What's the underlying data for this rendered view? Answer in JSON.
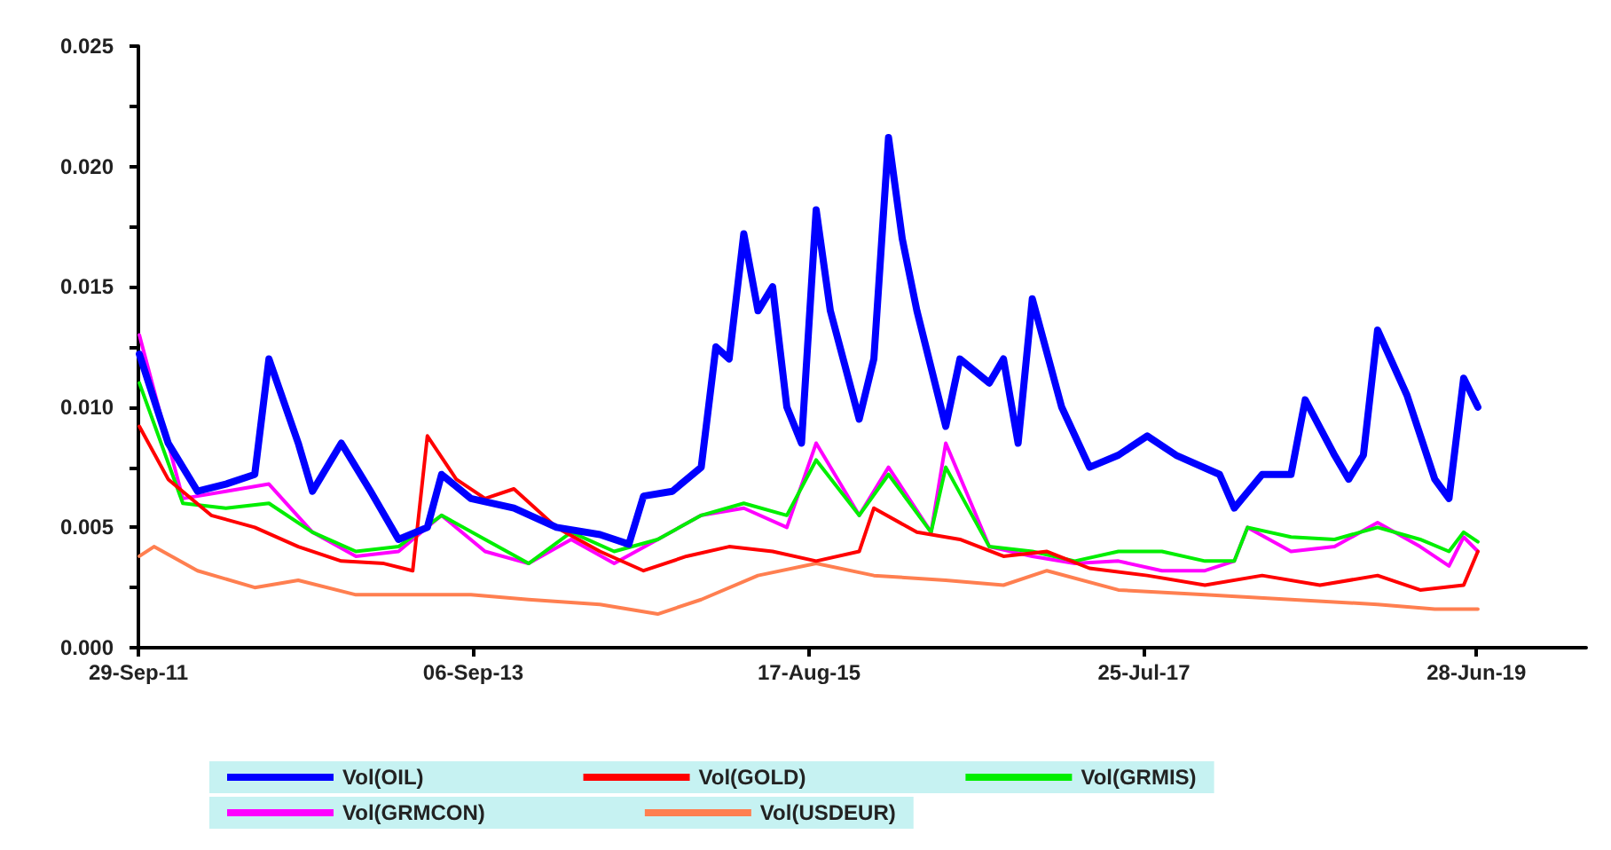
{
  "chart_data": {
    "type": "line",
    "xlim": [
      "2011-09-29",
      "2020-02-15"
    ],
    "xticks": [
      {
        "value": "2011-09-29",
        "label": "29-Sep-11"
      },
      {
        "value": "2013-09-06",
        "label": "06-Sep-13"
      },
      {
        "value": "2015-08-17",
        "label": "17-Aug-15"
      },
      {
        "value": "2017-07-25",
        "label": "25-Jul-17"
      },
      {
        "value": "2019-06-28",
        "label": "28-Jun-19"
      }
    ],
    "ylim": [
      0,
      0.025
    ],
    "yticks": [
      {
        "value": 0,
        "label": "0.000"
      },
      {
        "value": 0.0025,
        "label": null
      },
      {
        "value": 0.005,
        "label": "0.005"
      },
      {
        "value": 0.0075,
        "label": null
      },
      {
        "value": 0.01,
        "label": "0.010"
      },
      {
        "value": 0.0125,
        "label": null
      },
      {
        "value": 0.015,
        "label": "0.015"
      },
      {
        "value": 0.0175,
        "label": null
      },
      {
        "value": 0.02,
        "label": "0.020"
      },
      {
        "value": 0.0225,
        "label": null
      },
      {
        "value": 0.025,
        "label": "0.025"
      }
    ],
    "grid": false,
    "legend": "bottom",
    "marker": "none",
    "series": [
      {
        "name": "Vol(OIL)",
        "color": "#0000ff",
        "x": [
          "2011-10",
          "2011-12",
          "2012-02",
          "2012-04",
          "2012-06",
          "2012-07",
          "2012-09",
          "2012-10",
          "2012-12",
          "2013-02",
          "2013-04",
          "2013-06",
          "2013-07",
          "2013-09",
          "2013-12",
          "2014-03",
          "2014-06",
          "2014-08",
          "2014-09",
          "2014-11",
          "2015-01",
          "2015-02",
          "2015-03",
          "2015-04",
          "2015-05",
          "2015-06",
          "2015-07",
          "2015-08",
          "2015-09",
          "2015-10",
          "2015-12",
          "2016-01",
          "2016-02",
          "2016-03",
          "2016-04",
          "2016-06",
          "2016-07",
          "2016-09",
          "2016-10",
          "2016-11",
          "2016-12",
          "2017-02",
          "2017-04",
          "2017-06",
          "2017-08",
          "2017-10",
          "2018-01",
          "2018-02",
          "2018-04",
          "2018-06",
          "2018-07",
          "2018-09",
          "2018-10",
          "2018-11",
          "2018-12",
          "2019-02",
          "2019-04",
          "2019-05",
          "2019-06",
          "2019-07"
        ],
        "values": [
          0.0122,
          0.0085,
          0.0065,
          0.0068,
          0.0072,
          0.012,
          0.0085,
          0.0065,
          0.0085,
          0.0065,
          0.0045,
          0.005,
          0.0072,
          0.0062,
          0.0058,
          0.005,
          0.0047,
          0.0043,
          0.0063,
          0.0065,
          0.0075,
          0.0125,
          0.012,
          0.0172,
          0.014,
          0.015,
          0.01,
          0.0085,
          0.0182,
          0.014,
          0.0095,
          0.012,
          0.0212,
          0.017,
          0.014,
          0.0092,
          0.012,
          0.011,
          0.012,
          0.0085,
          0.0145,
          0.01,
          0.0075,
          0.008,
          0.0088,
          0.008,
          0.0072,
          0.0058,
          0.0072,
          0.0072,
          0.0103,
          0.008,
          0.007,
          0.008,
          0.0132,
          0.0105,
          0.007,
          0.0062,
          0.0112,
          0.01
        ]
      },
      {
        "name": "Vol(GOLD)",
        "color": "#ff0000",
        "x": [
          "2011-10",
          "2011-12",
          "2012-03",
          "2012-06",
          "2012-09",
          "2012-12",
          "2013-03",
          "2013-05",
          "2013-06",
          "2013-08",
          "2013-10",
          "2013-12",
          "2014-03",
          "2014-06",
          "2014-09",
          "2014-12",
          "2015-03",
          "2015-06",
          "2015-09",
          "2015-12",
          "2016-01",
          "2016-04",
          "2016-07",
          "2016-10",
          "2017-01",
          "2017-04",
          "2017-08",
          "2017-12",
          "2018-04",
          "2018-08",
          "2018-12",
          "2019-03",
          "2019-06",
          "2019-07"
        ],
        "values": [
          0.0092,
          0.007,
          0.0055,
          0.005,
          0.0042,
          0.0036,
          0.0035,
          0.0032,
          0.0088,
          0.007,
          0.0062,
          0.0066,
          0.005,
          0.004,
          0.0032,
          0.0038,
          0.0042,
          0.004,
          0.0036,
          0.004,
          0.0058,
          0.0048,
          0.0045,
          0.0038,
          0.004,
          0.0033,
          0.003,
          0.0026,
          0.003,
          0.0026,
          0.003,
          0.0024,
          0.0026,
          0.004
        ]
      },
      {
        "name": "Vol(GRMIS)",
        "color": "#00ee00",
        "x": [
          "2011-10",
          "2012-01",
          "2012-04",
          "2012-07",
          "2012-10",
          "2013-01",
          "2013-04",
          "2013-07",
          "2013-10",
          "2014-01",
          "2014-04",
          "2014-07",
          "2014-10",
          "2015-01",
          "2015-04",
          "2015-07",
          "2015-09",
          "2015-12",
          "2016-02",
          "2016-05",
          "2016-06",
          "2016-09",
          "2016-12",
          "2017-03",
          "2017-06",
          "2017-09",
          "2017-12",
          "2018-02",
          "2018-03",
          "2018-06",
          "2018-09",
          "2018-12",
          "2019-03",
          "2019-05",
          "2019-06",
          "2019-07"
        ],
        "values": [
          0.011,
          0.006,
          0.0058,
          0.006,
          0.0048,
          0.004,
          0.0042,
          0.0055,
          0.0045,
          0.0035,
          0.0048,
          0.004,
          0.0045,
          0.0055,
          0.006,
          0.0055,
          0.0078,
          0.0055,
          0.0072,
          0.0048,
          0.0075,
          0.0042,
          0.004,
          0.0036,
          0.004,
          0.004,
          0.0036,
          0.0036,
          0.005,
          0.0046,
          0.0045,
          0.005,
          0.0045,
          0.004,
          0.0048,
          0.0044
        ]
      },
      {
        "name": "Vol(GRMCON)",
        "color": "#ff00ff",
        "x": [
          "2011-10",
          "2012-01",
          "2012-04",
          "2012-07",
          "2012-10",
          "2013-01",
          "2013-04",
          "2013-07",
          "2013-10",
          "2014-01",
          "2014-04",
          "2014-07",
          "2014-10",
          "2015-01",
          "2015-04",
          "2015-07",
          "2015-09",
          "2015-12",
          "2016-02",
          "2016-05",
          "2016-06",
          "2016-09",
          "2016-12",
          "2017-03",
          "2017-06",
          "2017-09",
          "2017-12",
          "2018-02",
          "2018-03",
          "2018-06",
          "2018-09",
          "2018-12",
          "2019-03",
          "2019-05",
          "2019-06",
          "2019-07"
        ],
        "values": [
          0.013,
          0.0062,
          0.0065,
          0.0068,
          0.0048,
          0.0038,
          0.004,
          0.0055,
          0.004,
          0.0035,
          0.0045,
          0.0035,
          0.0045,
          0.0055,
          0.0058,
          0.005,
          0.0085,
          0.0055,
          0.0075,
          0.0048,
          0.0085,
          0.0042,
          0.0038,
          0.0035,
          0.0036,
          0.0032,
          0.0032,
          0.0036,
          0.005,
          0.004,
          0.0042,
          0.0052,
          0.0042,
          0.0034,
          0.0046,
          0.004
        ]
      },
      {
        "name": "Vol(USDEUR)",
        "color": "#ff7f50",
        "x": [
          "2011-10",
          "2011-11",
          "2012-02",
          "2012-06",
          "2012-09",
          "2013-01",
          "2013-05",
          "2013-09",
          "2014-01",
          "2014-06",
          "2014-10",
          "2015-01",
          "2015-05",
          "2015-09",
          "2016-01",
          "2016-06",
          "2016-10",
          "2017-01",
          "2017-06",
          "2017-12",
          "2018-06",
          "2018-12",
          "2019-04",
          "2019-07"
        ],
        "values": [
          0.0038,
          0.0042,
          0.0032,
          0.0025,
          0.0028,
          0.0022,
          0.0022,
          0.0022,
          0.002,
          0.0018,
          0.0014,
          0.002,
          0.003,
          0.0035,
          0.003,
          0.0028,
          0.0026,
          0.0032,
          0.0024,
          0.0022,
          0.002,
          0.0018,
          0.0016,
          0.0016
        ]
      }
    ]
  }
}
